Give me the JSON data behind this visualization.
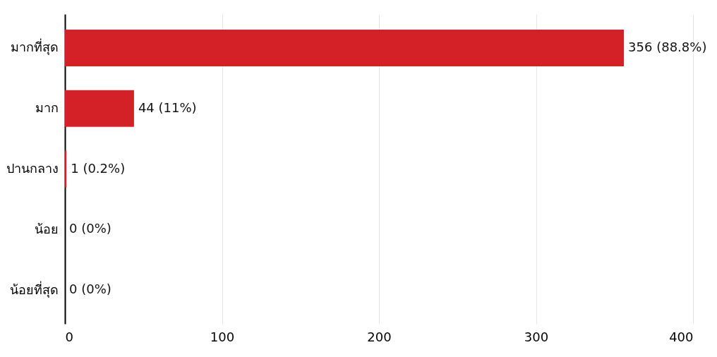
{
  "chart_data": {
    "type": "bar",
    "orientation": "horizontal",
    "categories": [
      "มากที่สุด",
      "มาก",
      "ปานกลาง",
      "น้อย",
      "น้อยที่สุด"
    ],
    "values": [
      356,
      44,
      1,
      0,
      0
    ],
    "value_labels": [
      "356 (88.8%)",
      "44 (11%)",
      "1 (0.2%)",
      "0 (0%)",
      "0 (0%)"
    ],
    "color": "#d42027",
    "xlim": [
      0,
      400
    ],
    "xticks": [
      0,
      100,
      200,
      300,
      400
    ],
    "grid": "x"
  }
}
